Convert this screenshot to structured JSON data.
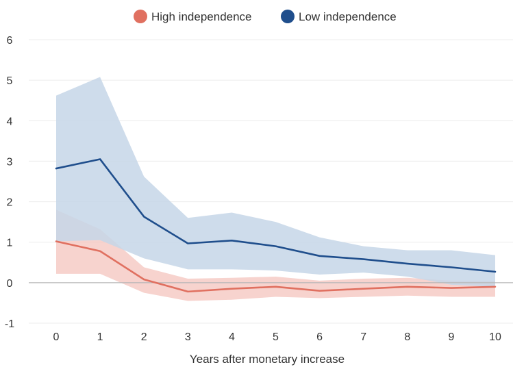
{
  "chart_data": {
    "type": "line",
    "x": [
      0,
      1,
      2,
      3,
      4,
      5,
      6,
      7,
      8,
      9,
      10
    ],
    "xlabel": "Years after monetary increase",
    "ylabel": "",
    "xlim": [
      0,
      10
    ],
    "ylim": [
      -1,
      6
    ],
    "y_ticks": [
      -1,
      0,
      1,
      2,
      3,
      4,
      5,
      6
    ],
    "grid": "horizontal",
    "legend_position": "top-center",
    "series": [
      {
        "name": "High independence",
        "color": "#e07060",
        "band_color": "#f4c4bd",
        "values": [
          1.02,
          0.78,
          0.08,
          -0.22,
          -0.15,
          -0.1,
          -0.2,
          -0.15,
          -0.1,
          -0.13,
          -0.1
        ],
        "upper": [
          1.8,
          1.32,
          0.38,
          0.1,
          0.12,
          0.15,
          0.05,
          0.1,
          0.12,
          0.05,
          0.05
        ],
        "lower": [
          0.22,
          0.22,
          -0.25,
          -0.45,
          -0.42,
          -0.35,
          -0.38,
          -0.35,
          -0.32,
          -0.35,
          -0.35
        ]
      },
      {
        "name": "Low independence",
        "color": "#1f4e8c",
        "band_color": "#c5d6e7",
        "values": [
          2.82,
          3.05,
          1.63,
          0.97,
          1.04,
          0.9,
          0.66,
          0.58,
          0.47,
          0.38,
          0.27
        ],
        "upper": [
          4.62,
          5.08,
          2.62,
          1.6,
          1.73,
          1.5,
          1.12,
          0.9,
          0.8,
          0.8,
          0.68
        ],
        "lower": [
          1.02,
          1.05,
          0.6,
          0.33,
          0.33,
          0.3,
          0.2,
          0.25,
          0.15,
          -0.05,
          -0.1
        ]
      }
    ]
  }
}
